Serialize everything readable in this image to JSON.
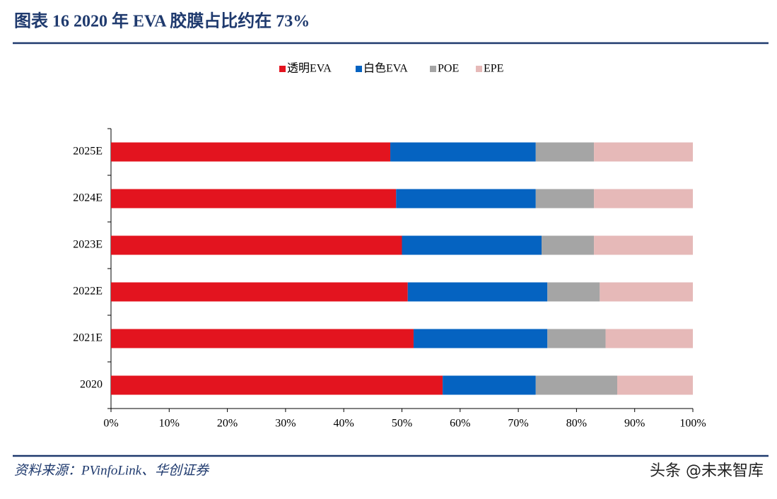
{
  "chart_data": {
    "type": "stacked_barh",
    "title": "图表 16   2020 年 EVA 胶膜占比约在 73%",
    "categories": [
      "2020",
      "2021E",
      "2022E",
      "2023E",
      "2024E",
      "2025E"
    ],
    "series": [
      {
        "name": "透明EVA",
        "color": "#e3141f",
        "values": [
          57,
          52,
          51,
          50,
          49,
          48
        ]
      },
      {
        "name": "白色EVA",
        "color": "#0563c1",
        "values": [
          16,
          23,
          24,
          24,
          24,
          25
        ]
      },
      {
        "name": "POE",
        "color": "#a5a5a5",
        "values": [
          14,
          10,
          9,
          9,
          10,
          10
        ]
      },
      {
        "name": "EPE",
        "color": "#e6b9b8",
        "values": [
          13,
          15,
          16,
          17,
          17,
          17
        ]
      }
    ],
    "xlim": [
      0,
      100
    ],
    "xticks": [
      {
        "value": 0,
        "label": "0%"
      },
      {
        "value": 10,
        "label": "10%"
      },
      {
        "value": 20,
        "label": "20%"
      },
      {
        "value": 30,
        "label": "30%"
      },
      {
        "value": 40,
        "label": "40%"
      },
      {
        "value": 50,
        "label": "50%"
      },
      {
        "value": 60,
        "label": "60%"
      },
      {
        "value": 70,
        "label": "70%"
      },
      {
        "value": 80,
        "label": "80%"
      },
      {
        "value": 90,
        "label": "90%"
      },
      {
        "value": 100,
        "label": "100%"
      }
    ],
    "legend": "top",
    "source": "资料来源：PVinfoLink、华创证券",
    "watermark": "头条 @未来智库"
  }
}
